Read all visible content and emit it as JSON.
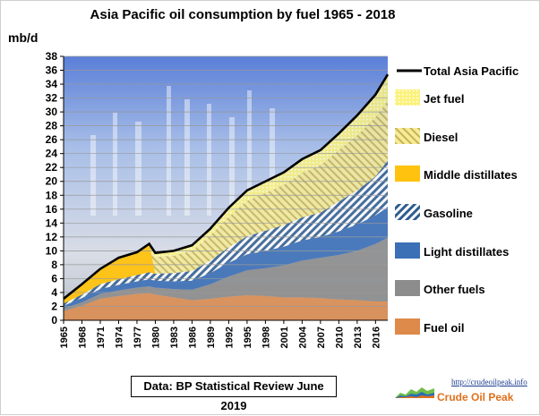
{
  "chart_data": {
    "type": "area",
    "title": "Asia Pacific oil consumption by fuel 1965 - 2018",
    "ylabel": "mb/d",
    "xlabel": "",
    "ylim": [
      0,
      38
    ],
    "yticks": [
      0,
      2,
      4,
      6,
      8,
      10,
      12,
      14,
      16,
      18,
      20,
      22,
      24,
      26,
      28,
      30,
      32,
      34,
      36,
      38
    ],
    "xlim": [
      1965,
      2018
    ],
    "xtick_labels": [
      "1965",
      "1968",
      "1971",
      "1974",
      "1977",
      "1980",
      "1983",
      "1986",
      "1989",
      "1992",
      "1995",
      "1998",
      "2001",
      "2004",
      "2007",
      "2010",
      "2013",
      "2016"
    ],
    "grid": true,
    "legend_position": "right",
    "stacked": true,
    "x": [
      1965,
      1968,
      1971,
      1974,
      1977,
      1979,
      1980,
      1983,
      1986,
      1989,
      1992,
      1995,
      1998,
      2001,
      2004,
      2007,
      2010,
      2013,
      2016,
      2018
    ],
    "series": [
      {
        "name": "Fuel oil",
        "values": [
          1.3,
          2.1,
          3.1,
          3.5,
          3.8,
          3.9,
          3.7,
          3.3,
          2.9,
          3.1,
          3.4,
          3.6,
          3.5,
          3.3,
          3.3,
          3.2,
          3.0,
          2.9,
          2.7,
          2.7
        ]
      },
      {
        "name": "Other fuels",
        "values": [
          0.4,
          0.5,
          0.7,
          0.8,
          0.9,
          1.0,
          1.0,
          1.2,
          1.5,
          2.1,
          2.9,
          3.6,
          4.0,
          4.6,
          5.3,
          5.8,
          6.4,
          7.1,
          8.3,
          9.2
        ]
      },
      {
        "name": "Light distillates",
        "values": [
          0.4,
          0.6,
          0.7,
          0.8,
          0.9,
          1.0,
          1.0,
          1.1,
          1.3,
          1.6,
          2.0,
          2.3,
          2.5,
          2.7,
          2.9,
          3.0,
          3.4,
          3.8,
          4.1,
          4.4
        ]
      },
      {
        "name": "Gasoline",
        "values": [
          0.3,
          0.5,
          0.7,
          0.8,
          0.9,
          1.0,
          1.0,
          1.2,
          1.4,
          1.8,
          2.2,
          2.6,
          2.9,
          3.1,
          3.3,
          3.5,
          4.3,
          4.9,
          5.6,
          6.7
        ]
      },
      {
        "name": "Middle distillates",
        "values": [
          0.7,
          1.5,
          2.2,
          3.1,
          3.3,
          4.1,
          0,
          0,
          0,
          0,
          0,
          0,
          0,
          0,
          0,
          0,
          0,
          0,
          0,
          0
        ]
      },
      {
        "name": "Diesel",
        "values": [
          0,
          0,
          0,
          0,
          0,
          0,
          2.4,
          2.5,
          2.9,
          3.6,
          4.4,
          5.1,
          5.4,
          5.8,
          6.4,
          6.8,
          7.4,
          7.9,
          8.5,
          8.6
        ]
      },
      {
        "name": "Jet fuel",
        "values": [
          0,
          0,
          0,
          0,
          0,
          0,
          0.6,
          0.7,
          0.8,
          1.0,
          1.3,
          1.5,
          1.7,
          1.8,
          2.0,
          2.2,
          2.4,
          2.9,
          3.3,
          3.8
        ]
      }
    ],
    "total": {
      "name": "Total Asia Pacific",
      "values": [
        3.1,
        5.2,
        7.4,
        9.0,
        9.8,
        11.0,
        9.7,
        10.0,
        10.8,
        13.2,
        16.2,
        18.7,
        20.0,
        21.3,
        23.2,
        24.5,
        26.9,
        29.5,
        32.5,
        35.4
      ]
    },
    "colors": {
      "Fuel oil": "#dd8a4a",
      "Other fuels": "#8c8c8c",
      "Light distillates": "#3b6fb6",
      "Gasoline": "#2f5c8f",
      "Middle distillates": "#ffc20e",
      "Diesel": "#dcc86a",
      "Jet fuel": "#fbf27a",
      "Total Asia Pacific": "#000000"
    }
  },
  "source_note": "Data: BP Statistical Review June 2019",
  "logo": {
    "url": "http://crudeoilpeak.info",
    "name": "Crude Oil Peak"
  }
}
